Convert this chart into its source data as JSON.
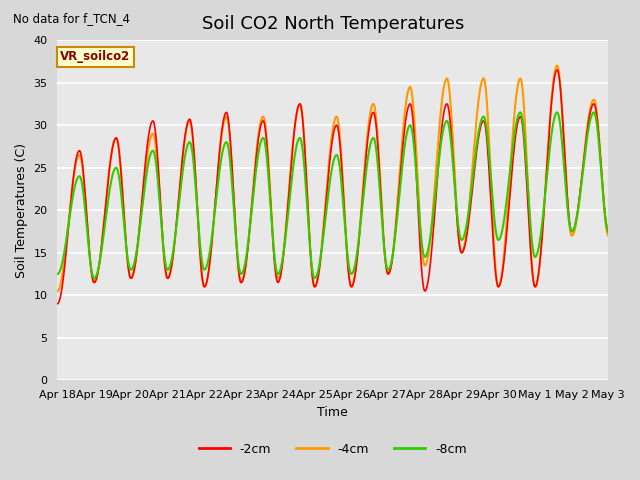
{
  "title": "Soil CO2 North Temperatures",
  "subtitle": "No data for f_TCN_4",
  "ylabel": "Soil Temperatures (C)",
  "xlabel": "Time",
  "ylim": [
    0,
    40
  ],
  "yticks": [
    0,
    5,
    10,
    15,
    20,
    25,
    30,
    35,
    40
  ],
  "xtick_labels": [
    "Apr 18",
    "Apr 19",
    "Apr 20",
    "Apr 21",
    "Apr 22",
    "Apr 23",
    "Apr 24",
    "Apr 25",
    "Apr 26",
    "Apr 27",
    "Apr 28",
    "Apr 29",
    "Apr 30",
    "May 1",
    "May 2",
    "May 3"
  ],
  "legend_labels": [
    "-2cm",
    "-4cm",
    "-8cm"
  ],
  "legend_colors": [
    "#ff0000",
    "#ff9900",
    "#33cc00"
  ],
  "annotation_text": "VR_soilco2",
  "bg_color": "#e8e8e8",
  "grid_color": "#ffffff",
  "title_fontsize": 13,
  "label_fontsize": 9,
  "tick_fontsize": 8,
  "days": 15,
  "day_mins_2cm": [
    9.0,
    11.5,
    12.0,
    12.0,
    11.0,
    11.5,
    11.5,
    11.0,
    11.0,
    12.5,
    10.5,
    15.0,
    11.0,
    11.0,
    17.5
  ],
  "day_maxs_2cm": [
    27.0,
    28.5,
    30.5,
    30.7,
    31.5,
    30.5,
    32.5,
    30.0,
    31.5,
    32.5,
    32.5,
    30.5,
    31.0,
    36.5,
    32.5
  ],
  "day_mins_4cm": [
    10.5,
    11.5,
    12.0,
    12.0,
    11.0,
    11.5,
    12.0,
    11.0,
    11.0,
    12.5,
    13.5,
    15.0,
    11.0,
    11.0,
    17.0
  ],
  "day_maxs_4cm": [
    26.5,
    28.5,
    29.0,
    30.5,
    31.0,
    31.0,
    32.5,
    31.0,
    32.5,
    34.5,
    35.5,
    35.5,
    35.5,
    37.0,
    33.0
  ],
  "day_mins_8cm": [
    12.5,
    12.0,
    13.0,
    13.0,
    13.0,
    12.5,
    12.5,
    12.0,
    12.5,
    13.0,
    14.5,
    16.5,
    16.5,
    14.5,
    17.5
  ],
  "day_maxs_8cm": [
    24.0,
    25.0,
    27.0,
    28.0,
    28.0,
    28.5,
    28.5,
    26.5,
    28.5,
    30.0,
    30.5,
    31.0,
    31.5,
    31.5,
    31.5
  ]
}
